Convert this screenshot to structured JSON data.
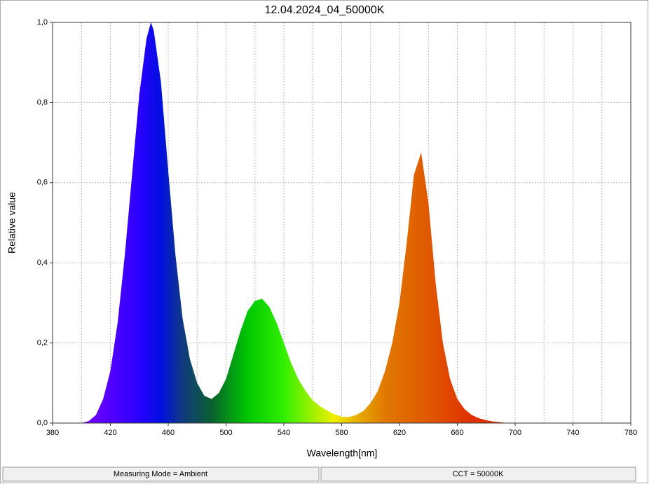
{
  "chart_data": {
    "type": "area",
    "title": "12.04.2024_04_50000K",
    "x_label": "Wavelength[nm]",
    "y_label": "Relative value",
    "x": [
      380,
      385,
      390,
      395,
      400,
      405,
      410,
      415,
      420,
      425,
      430,
      435,
      440,
      445,
      448,
      450,
      455,
      460,
      465,
      470,
      475,
      480,
      485,
      490,
      495,
      500,
      505,
      510,
      515,
      520,
      525,
      530,
      535,
      540,
      545,
      550,
      555,
      560,
      565,
      570,
      575,
      580,
      585,
      590,
      595,
      600,
      605,
      610,
      615,
      620,
      625,
      630,
      635,
      640,
      645,
      650,
      655,
      660,
      665,
      670,
      675,
      680,
      685,
      690,
      695,
      700,
      720,
      740,
      760,
      780
    ],
    "values": [
      0,
      0,
      0,
      0,
      0,
      0.005,
      0.02,
      0.06,
      0.13,
      0.25,
      0.42,
      0.62,
      0.82,
      0.96,
      1.0,
      0.98,
      0.85,
      0.63,
      0.42,
      0.26,
      0.16,
      0.1,
      0.068,
      0.06,
      0.075,
      0.11,
      0.17,
      0.23,
      0.28,
      0.305,
      0.31,
      0.29,
      0.25,
      0.2,
      0.15,
      0.11,
      0.08,
      0.057,
      0.042,
      0.031,
      0.022,
      0.016,
      0.015,
      0.02,
      0.03,
      0.05,
      0.08,
      0.13,
      0.2,
      0.3,
      0.45,
      0.62,
      0.675,
      0.55,
      0.35,
      0.2,
      0.11,
      0.06,
      0.035,
      0.02,
      0.012,
      0.007,
      0.004,
      0.002,
      0,
      0,
      0,
      0,
      0,
      0
    ],
    "gradient_stops": [
      {
        "x": 400,
        "color": "#7a00ff"
      },
      {
        "x": 440,
        "color": "#2a00ff"
      },
      {
        "x": 455,
        "color": "#0010e0"
      },
      {
        "x": 470,
        "color": "#103a80"
      },
      {
        "x": 490,
        "color": "#0a6030"
      },
      {
        "x": 515,
        "color": "#00c800"
      },
      {
        "x": 540,
        "color": "#30f000"
      },
      {
        "x": 560,
        "color": "#a0f000"
      },
      {
        "x": 575,
        "color": "#f0f000"
      },
      {
        "x": 590,
        "color": "#e8b000"
      },
      {
        "x": 610,
        "color": "#e07800"
      },
      {
        "x": 640,
        "color": "#e05800"
      },
      {
        "x": 670,
        "color": "#e03000"
      }
    ],
    "xlim": [
      380,
      780
    ],
    "ylim": [
      0,
      1
    ],
    "xticks": [
      380,
      420,
      460,
      500,
      540,
      580,
      620,
      660,
      700,
      740,
      780
    ],
    "x_minor_ticks": [
      400,
      440,
      480,
      520,
      560,
      600,
      640,
      680,
      720,
      760
    ],
    "yticks": [
      {
        "value": 0,
        "label": "0,0"
      },
      {
        "value": 0.2,
        "label": "0,2"
      },
      {
        "value": 0.4,
        "label": "0,4"
      },
      {
        "value": 0.6,
        "label": "0,6"
      },
      {
        "value": 0.8,
        "label": "0,8"
      },
      {
        "value": 1,
        "label": "1,0"
      }
    ],
    "grid": true
  },
  "status_bar": {
    "left": "Measuring Mode = Ambient",
    "right": "CCT = 50000K"
  }
}
